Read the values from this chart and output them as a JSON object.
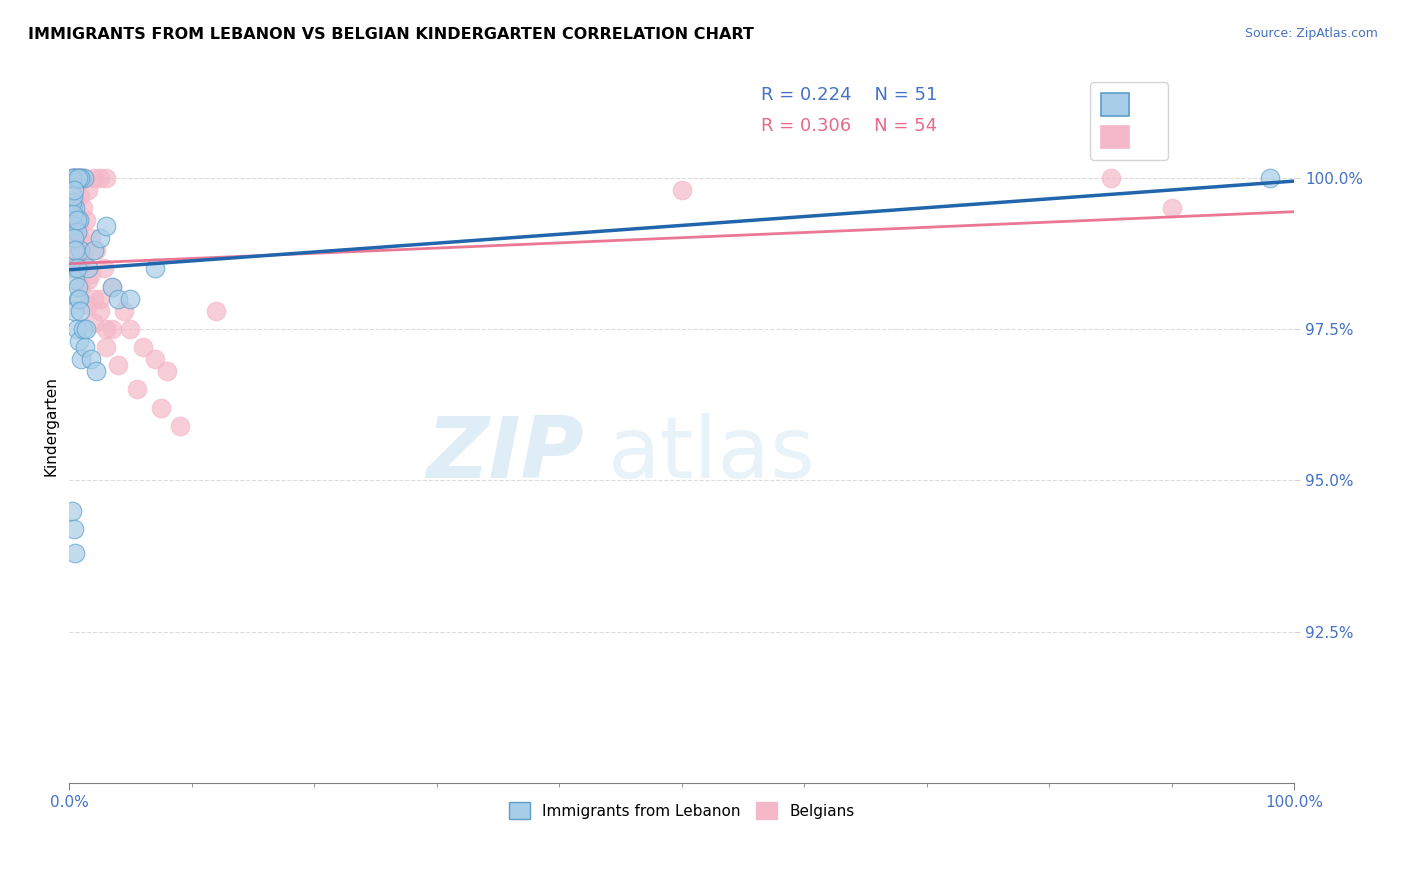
{
  "title": "IMMIGRANTS FROM LEBANON VS BELGIAN KINDERGARTEN CORRELATION CHART",
  "source_text": "Source: ZipAtlas.com",
  "ylabel": "Kindergarten",
  "x_min": 0.0,
  "x_max": 100.0,
  "y_min": 90.0,
  "y_max": 101.8,
  "y_ticks": [
    92.5,
    95.0,
    97.5,
    100.0
  ],
  "y_tick_labels": [
    "92.5%",
    "95.0%",
    "97.5%",
    "100.0%"
  ],
  "x_tick_labels_pos": [
    0.0,
    100.0
  ],
  "x_tick_labels": [
    "0.0%",
    "100.0%"
  ],
  "legend_blue_r": "R = 0.224",
  "legend_blue_n": "N = 51",
  "legend_pink_r": "R = 0.306",
  "legend_pink_n": "N = 54",
  "color_blue_fill": "#a8cde8",
  "color_blue_edge": "#5b9ec9",
  "color_pink_fill": "#f4b8c8",
  "color_pink_edge": "#e87ea0",
  "color_blue_line": "#2166ac",
  "color_pink_line": "#e8698a",
  "watermark_zip": "ZIP",
  "watermark_atlas": "atlas",
  "blue_x": [
    0.3,
    0.5,
    0.8,
    1.0,
    1.2,
    0.4,
    0.6,
    0.9,
    0.2,
    0.7,
    0.3,
    0.5,
    0.8,
    0.4,
    0.6,
    0.9,
    0.3,
    0.5,
    0.7,
    0.4,
    0.6,
    0.8,
    1.0,
    1.5,
    2.0,
    2.5,
    3.0,
    0.2,
    0.3,
    0.4,
    0.5,
    0.6,
    0.7,
    0.8,
    0.9,
    1.1,
    1.3,
    1.8,
    2.2,
    3.5,
    4.0,
    0.2,
    0.4,
    0.5,
    1.4,
    5.0,
    7.0,
    0.3,
    0.6,
    0.35,
    98.0
  ],
  "blue_y": [
    100.0,
    100.0,
    100.0,
    100.0,
    100.0,
    100.0,
    100.0,
    100.0,
    100.0,
    100.0,
    99.5,
    99.5,
    99.3,
    99.2,
    99.1,
    98.8,
    98.5,
    98.3,
    98.0,
    97.8,
    97.5,
    97.3,
    97.0,
    98.5,
    98.8,
    99.0,
    99.2,
    99.6,
    99.4,
    99.0,
    98.8,
    98.5,
    98.2,
    98.0,
    97.8,
    97.5,
    97.2,
    97.0,
    96.8,
    98.2,
    98.0,
    94.5,
    94.2,
    93.8,
    97.5,
    98.0,
    98.5,
    99.7,
    99.3,
    99.8,
    100.0
  ],
  "pink_x": [
    0.3,
    0.5,
    0.8,
    1.0,
    1.2,
    1.5,
    2.0,
    2.5,
    3.0,
    0.4,
    0.6,
    0.9,
    1.1,
    1.4,
    1.8,
    2.2,
    2.8,
    3.5,
    4.5,
    5.0,
    6.0,
    7.0,
    8.0,
    0.3,
    0.5,
    0.8,
    1.0,
    1.5,
    2.0,
    2.5,
    3.0,
    0.4,
    0.6,
    0.9,
    1.2,
    1.8,
    2.5,
    3.5,
    0.3,
    0.7,
    1.0,
    1.5,
    2.0,
    3.0,
    4.0,
    5.5,
    7.5,
    9.0,
    12.0,
    85.0,
    90.0,
    50.0,
    0.5,
    0.8
  ],
  "pink_y": [
    100.0,
    100.0,
    100.0,
    100.0,
    100.0,
    99.8,
    100.0,
    100.0,
    100.0,
    100.0,
    100.0,
    99.7,
    99.5,
    99.3,
    99.0,
    98.8,
    98.5,
    98.2,
    97.8,
    97.5,
    97.2,
    97.0,
    96.8,
    99.2,
    99.0,
    98.8,
    98.5,
    98.3,
    98.0,
    97.8,
    97.5,
    99.5,
    99.3,
    99.0,
    98.7,
    98.4,
    98.0,
    97.5,
    98.8,
    98.5,
    98.2,
    97.9,
    97.6,
    97.2,
    96.9,
    96.5,
    96.2,
    95.9,
    97.8,
    100.0,
    99.5,
    99.8,
    99.6,
    99.2
  ]
}
